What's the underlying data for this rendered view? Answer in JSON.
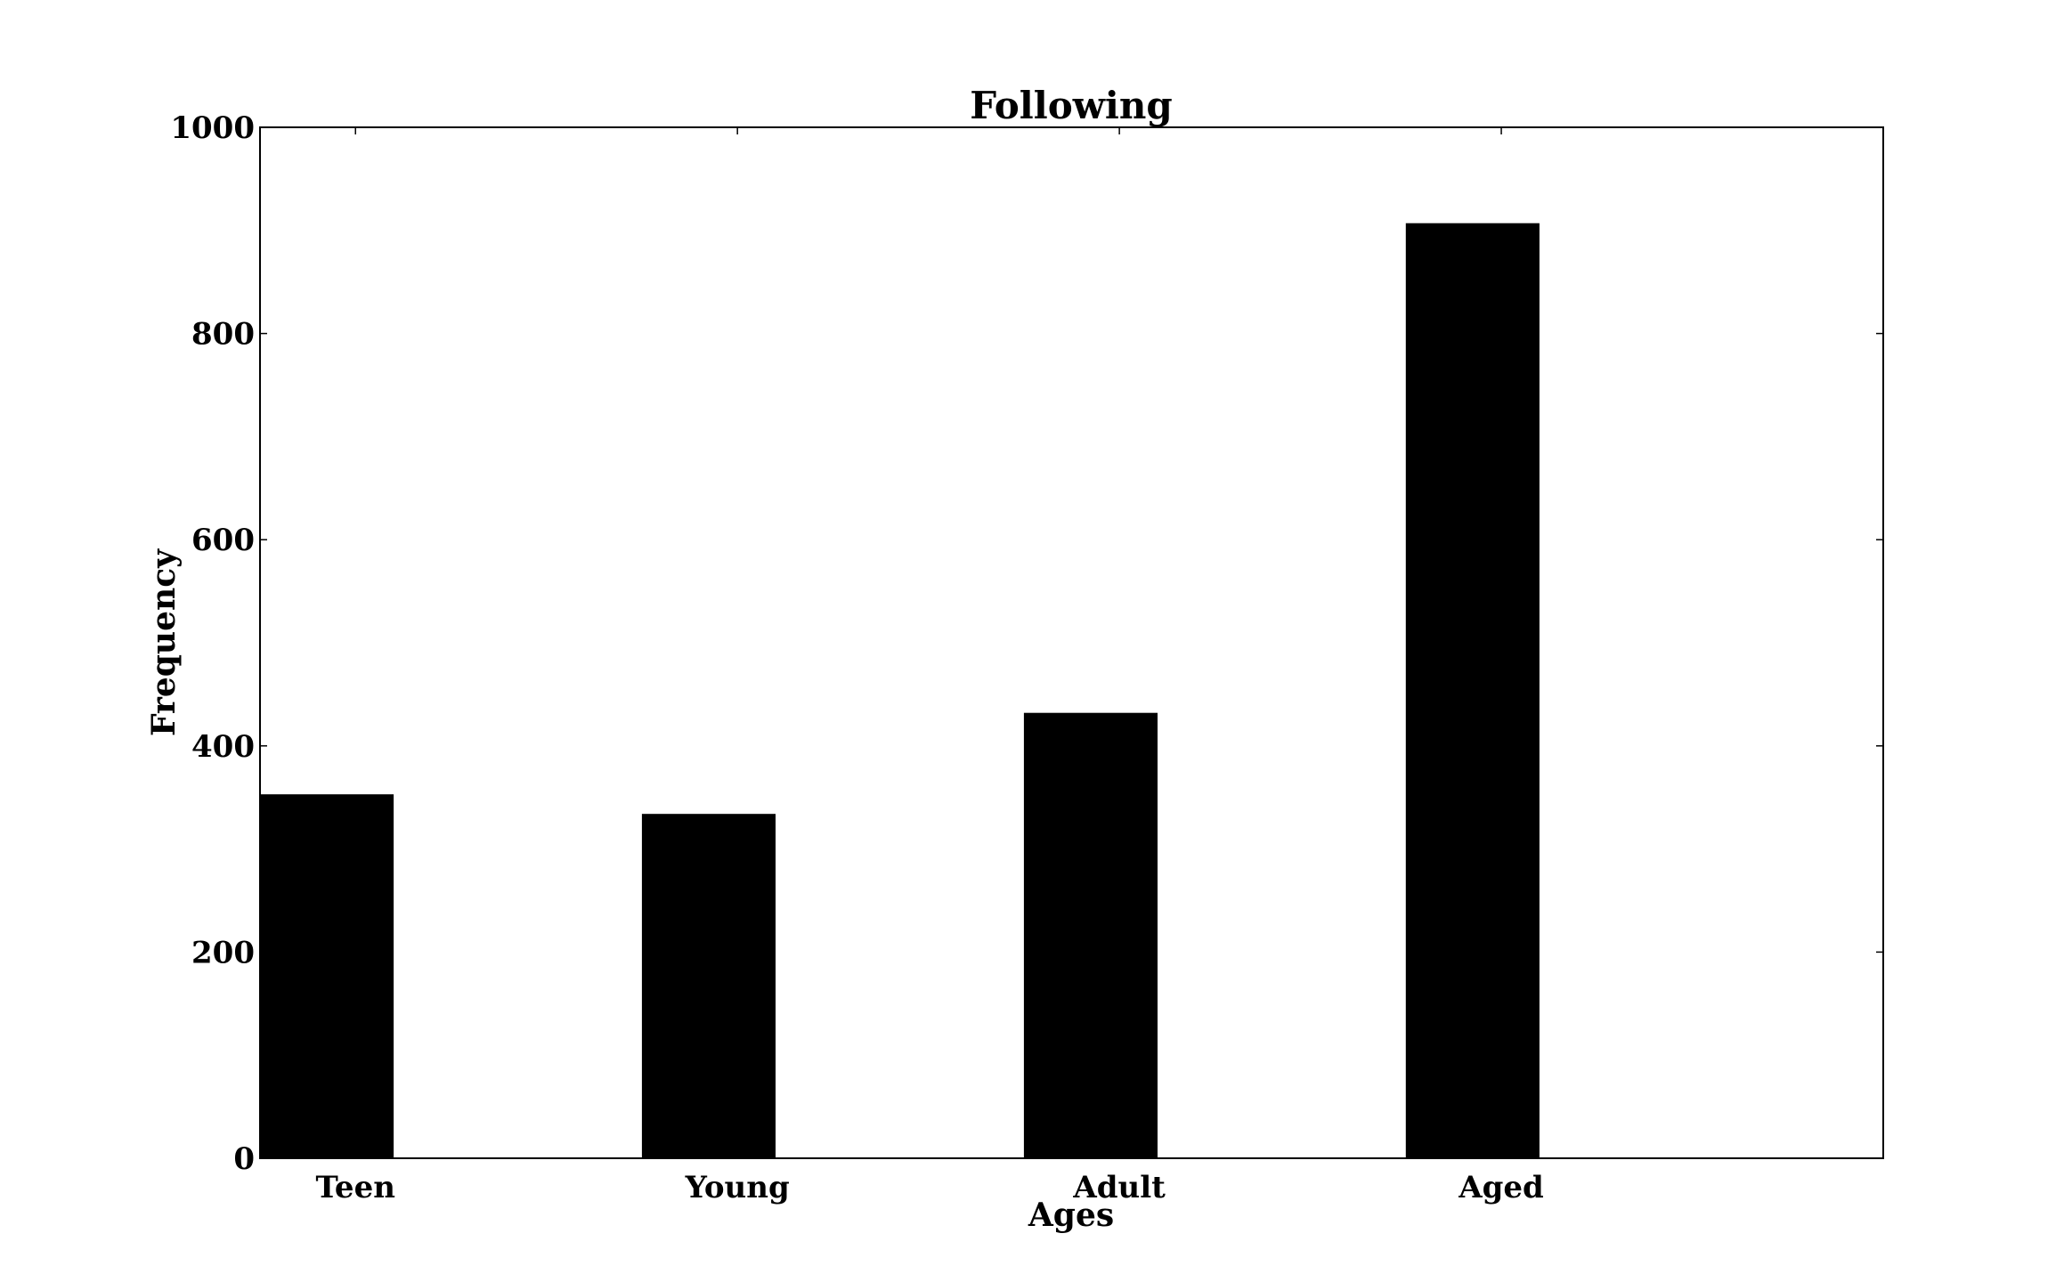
{
  "chart_data": {
    "type": "bar",
    "title": "Following",
    "xlabel": "Ages",
    "ylabel": "Frequency",
    "categories": [
      "Teen",
      "Young",
      "Adult",
      "Aged"
    ],
    "values": [
      353,
      334,
      432,
      907
    ],
    "ylim": [
      0,
      1000
    ],
    "yticks": [
      0,
      200,
      400,
      600,
      800,
      1000
    ],
    "bar_color": "#000000",
    "grid": false,
    "legend": "none"
  }
}
